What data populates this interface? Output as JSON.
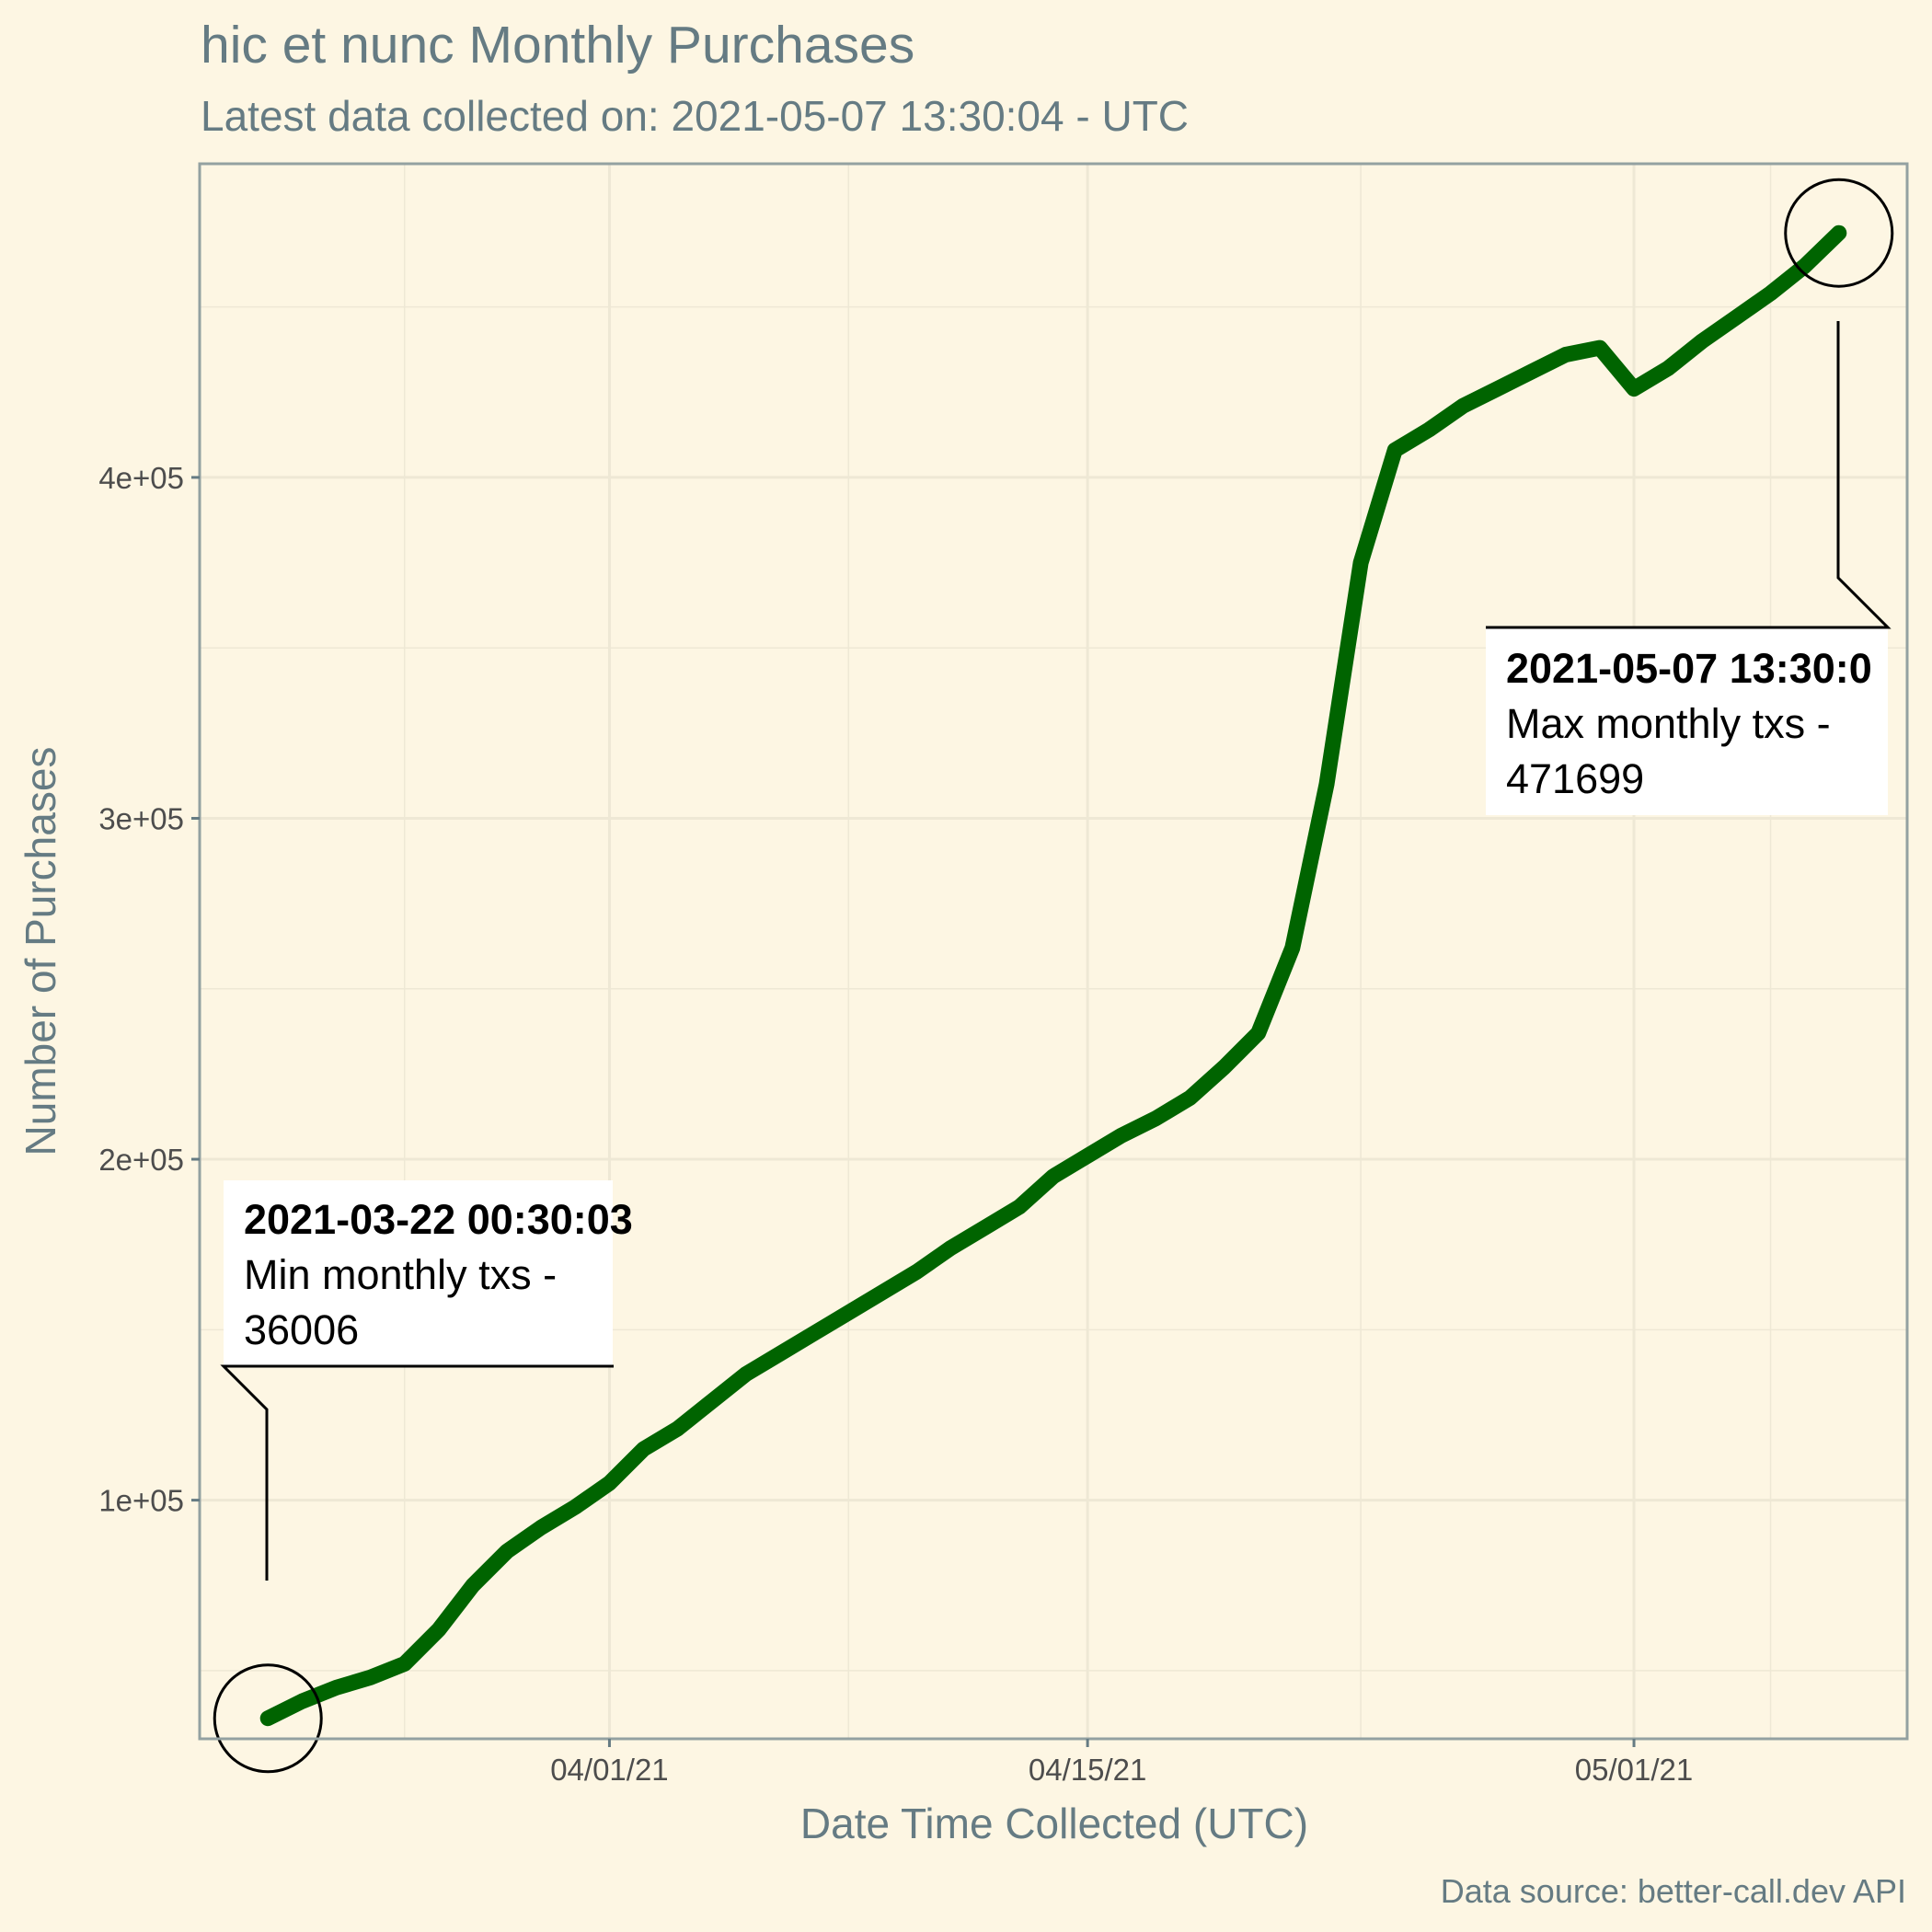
{
  "chart_data": {
    "type": "line",
    "title": "hic et nunc Monthly Purchases",
    "subtitle": "Latest data collected on: 2021-05-07 13:30:04  - UTC",
    "xlabel": "Date Time Collected (UTC)",
    "ylabel": "Number of Purchases",
    "caption": "Data source: better-call.dev API",
    "x_ticks": [
      "04/01/21",
      "04/15/21",
      "05/01/21"
    ],
    "y_ticks": [
      "1e+05",
      "2e+05",
      "3e+05",
      "4e+05"
    ],
    "xlim": [
      "2021-03-20",
      "2021-05-09"
    ],
    "ylim": [
      30000,
      492000
    ],
    "grid": true,
    "line_color": "#006400",
    "series": [
      {
        "x": [
          "2021-03-22",
          "2021-03-23",
          "2021-03-24",
          "2021-03-25",
          "2021-03-26",
          "2021-03-27",
          "2021-03-28",
          "2021-03-29",
          "2021-03-30",
          "2021-03-31",
          "2021-04-01",
          "2021-04-02",
          "2021-04-03",
          "2021-04-04",
          "2021-04-05",
          "2021-04-06",
          "2021-04-07",
          "2021-04-08",
          "2021-04-09",
          "2021-04-10",
          "2021-04-11",
          "2021-04-12",
          "2021-04-13",
          "2021-04-14",
          "2021-04-15",
          "2021-04-16",
          "2021-04-17",
          "2021-04-18",
          "2021-04-19",
          "2021-04-20",
          "2021-04-21",
          "2021-04-22",
          "2021-04-23",
          "2021-04-24",
          "2021-04-25",
          "2021-04-26",
          "2021-04-27",
          "2021-04-28",
          "2021-04-29",
          "2021-04-30",
          "2021-05-01",
          "2021-05-02",
          "2021-05-03",
          "2021-05-04",
          "2021-05-05",
          "2021-05-06",
          "2021-05-07"
        ],
        "values": [
          36006,
          41000,
          45000,
          48000,
          52000,
          62000,
          75000,
          85000,
          92000,
          98000,
          105000,
          115000,
          121000,
          129000,
          137000,
          143000,
          149000,
          155000,
          161000,
          167000,
          174000,
          180000,
          186000,
          195000,
          201000,
          207000,
          212000,
          218000,
          227000,
          237000,
          262000,
          310000,
          375000,
          408000,
          414000,
          421000,
          426000,
          431000,
          436000,
          438000,
          426000,
          432000,
          440000,
          447000,
          454000,
          462000,
          471699
        ]
      }
    ],
    "annotations": [
      {
        "date": "2021-03-22 00:30:03",
        "text": "Min monthly txs -",
        "value": "36006"
      },
      {
        "date": "2021-05-07 13:30:0",
        "text": "Max monthly txs -",
        "value": "471699"
      }
    ]
  }
}
